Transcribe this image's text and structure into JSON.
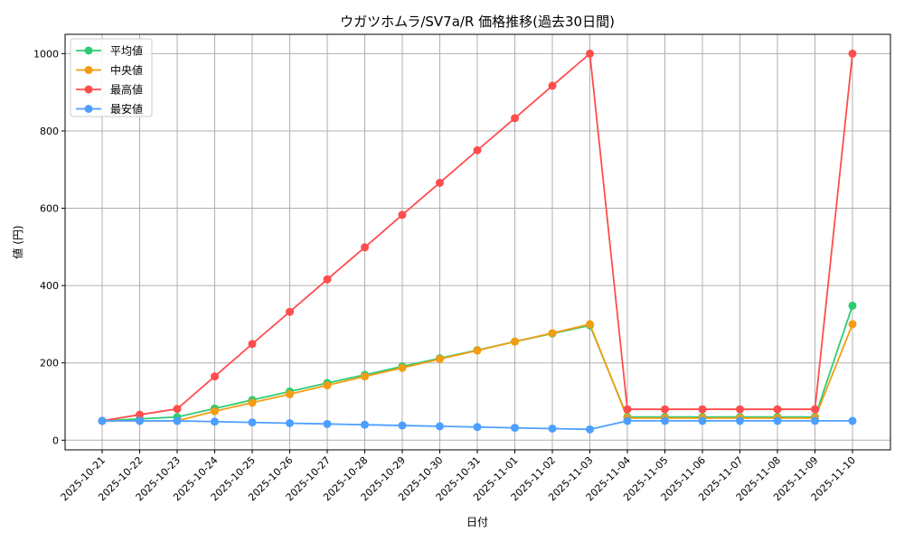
{
  "chart_data": {
    "type": "line",
    "title": "ウガツホムラ/SV7a/R 価格推移(過去30日間)",
    "xlabel": "日付",
    "ylabel": "値 (円)",
    "ylim": [
      -25,
      1050
    ],
    "yticks": [
      0,
      200,
      400,
      600,
      800,
      1000
    ],
    "grid": true,
    "legend": "top-left",
    "x": [
      "2025-10-21",
      "2025-10-22",
      "2025-10-23",
      "2025-10-24",
      "2025-10-25",
      "2025-10-26",
      "2025-10-27",
      "2025-10-28",
      "2025-10-29",
      "2025-10-30",
      "2025-10-31",
      "2025-11-01",
      "2025-11-02",
      "2025-11-03",
      "2025-11-04",
      "2025-11-05",
      "2025-11-06",
      "2025-11-07",
      "2025-11-08",
      "2025-11-09",
      "2025-11-10"
    ],
    "series": [
      {
        "name": "平均値",
        "color": "#2ecc71",
        "values": [
          50,
          55,
          60,
          82,
          104,
          126,
          148,
          169,
          191,
          212,
          233,
          255,
          276,
          297,
          60,
          60,
          60,
          60,
          60,
          60,
          348
        ]
      },
      {
        "name": "中央値",
        "color": "#f39c12",
        "values": [
          50,
          50,
          50,
          75,
          97,
          119,
          142,
          165,
          187,
          210,
          232,
          255,
          277,
          300,
          57,
          57,
          57,
          57,
          57,
          57,
          300
        ]
      },
      {
        "name": "最高値",
        "color": "#ff4d4d",
        "values": [
          50,
          66,
          81,
          165,
          249,
          332,
          416,
          499,
          583,
          666,
          750,
          833,
          917,
          1000,
          80,
          80,
          80,
          80,
          80,
          80,
          1000
        ]
      },
      {
        "name": "最安値",
        "color": "#4d9fff",
        "values": [
          50,
          50,
          50,
          48,
          46,
          44,
          42,
          40,
          38,
          36,
          34,
          32,
          30,
          28,
          50,
          50,
          50,
          50,
          50,
          50,
          50
        ]
      }
    ]
  }
}
